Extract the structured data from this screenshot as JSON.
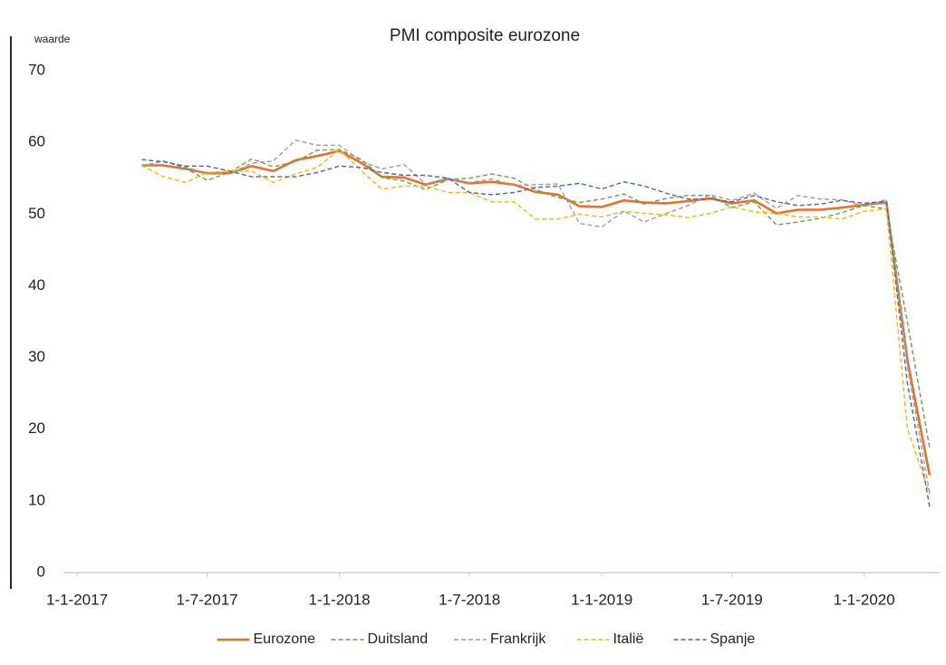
{
  "chart_data": {
    "type": "line",
    "title": "PMI composite eurozone",
    "y_label": "waarde",
    "x": [
      "1-4-2017",
      "1-5-2017",
      "1-6-2017",
      "1-7-2017",
      "1-8-2017",
      "1-9-2017",
      "1-10-2017",
      "1-11-2017",
      "1-12-2017",
      "1-1-2018",
      "1-2-2018",
      "1-3-2018",
      "1-4-2018",
      "1-5-2018",
      "1-6-2018",
      "1-7-2018",
      "1-8-2018",
      "1-9-2018",
      "1-10-2018",
      "1-11-2018",
      "1-12-2018",
      "1-1-2019",
      "1-2-2019",
      "1-3-2019",
      "1-4-2019",
      "1-5-2019",
      "1-6-2019",
      "1-7-2019",
      "1-8-2019",
      "1-9-2019",
      "1-10-2019",
      "1-11-2019",
      "1-12-2019",
      "1-1-2020",
      "1-2-2020",
      "1-3-2020",
      "1-4-2020"
    ],
    "xlim": [
      "1-1-2017",
      "15-4-2020"
    ],
    "xticks": [
      "1-1-2017",
      "1-7-2017",
      "1-1-2018",
      "1-7-2018",
      "1-1-2019",
      "1-7-2019",
      "1-1-2020"
    ],
    "ylim": [
      0,
      70
    ],
    "yticks": [
      0,
      10,
      20,
      30,
      40,
      50,
      60,
      70
    ],
    "legend": "bottom",
    "series": [
      {
        "name": "Eurozone",
        "color": "#e8702a",
        "dashed": false,
        "values": [
          56.8,
          56.8,
          56.3,
          55.7,
          55.7,
          56.7,
          56.0,
          57.5,
          58.1,
          58.8,
          57.1,
          55.2,
          55.1,
          54.1,
          54.9,
          54.3,
          54.5,
          54.1,
          53.1,
          52.7,
          51.1,
          51.0,
          51.9,
          51.6,
          51.5,
          51.8,
          52.2,
          51.5,
          51.9,
          50.1,
          50.6,
          50.6,
          50.9,
          51.3,
          51.6,
          29.7,
          13.6
        ]
      },
      {
        "name": "Duitsland",
        "color": "#5fa845",
        "dashed": true,
        "values": [
          56.7,
          57.4,
          56.4,
          54.7,
          55.8,
          57.7,
          56.6,
          57.3,
          58.9,
          59.0,
          57.6,
          55.1,
          54.6,
          53.4,
          54.8,
          55.0,
          55.6,
          55.0,
          53.4,
          52.3,
          51.6,
          52.1,
          52.8,
          51.4,
          52.2,
          52.6,
          52.6,
          50.9,
          51.7,
          48.5,
          48.9,
          49.4,
          50.2,
          51.2,
          50.7,
          35.0,
          17.4
        ]
      },
      {
        "name": "Frankrijk",
        "color": "#9e9e9e",
        "dashed": true,
        "values": [
          56.6,
          57.4,
          56.6,
          55.6,
          55.6,
          57.1,
          57.4,
          60.3,
          59.6,
          59.6,
          57.3,
          56.3,
          56.9,
          54.2,
          55.0,
          54.4,
          54.9,
          54.0,
          54.1,
          54.2,
          48.7,
          48.2,
          50.4,
          48.9,
          50.1,
          51.2,
          52.7,
          51.9,
          52.9,
          50.8,
          52.6,
          52.1,
          52.0,
          51.1,
          52.0,
          28.9,
          11.1
        ]
      },
      {
        "name": "Italië",
        "color": "#f5b800",
        "dashed": true,
        "values": [
          56.8,
          55.2,
          54.4,
          55.8,
          56.0,
          56.0,
          54.4,
          55.6,
          56.5,
          59.0,
          56.0,
          53.5,
          53.9,
          53.9,
          53.0,
          53.0,
          51.7,
          51.7,
          49.3,
          49.3,
          50.0,
          49.6,
          50.4,
          50.1,
          49.9,
          49.5,
          50.1,
          51.0,
          50.3,
          50.1,
          49.6,
          49.6,
          49.3,
          50.4,
          50.7,
          20.2,
          10.9
        ]
      },
      {
        "name": "Spanje",
        "color": "#3f66c0",
        "dashed": true,
        "values": [
          57.6,
          57.3,
          56.7,
          56.7,
          56.0,
          55.2,
          55.2,
          55.2,
          55.8,
          56.7,
          56.5,
          55.8,
          55.4,
          55.4,
          55.0,
          53.0,
          52.7,
          53.0,
          53.7,
          53.9,
          54.3,
          53.5,
          54.5,
          53.9,
          52.9,
          52.1,
          52.1,
          51.7,
          52.6,
          51.7,
          51.2,
          51.4,
          51.9,
          51.5,
          51.8,
          26.5,
          9.2
        ]
      }
    ]
  }
}
